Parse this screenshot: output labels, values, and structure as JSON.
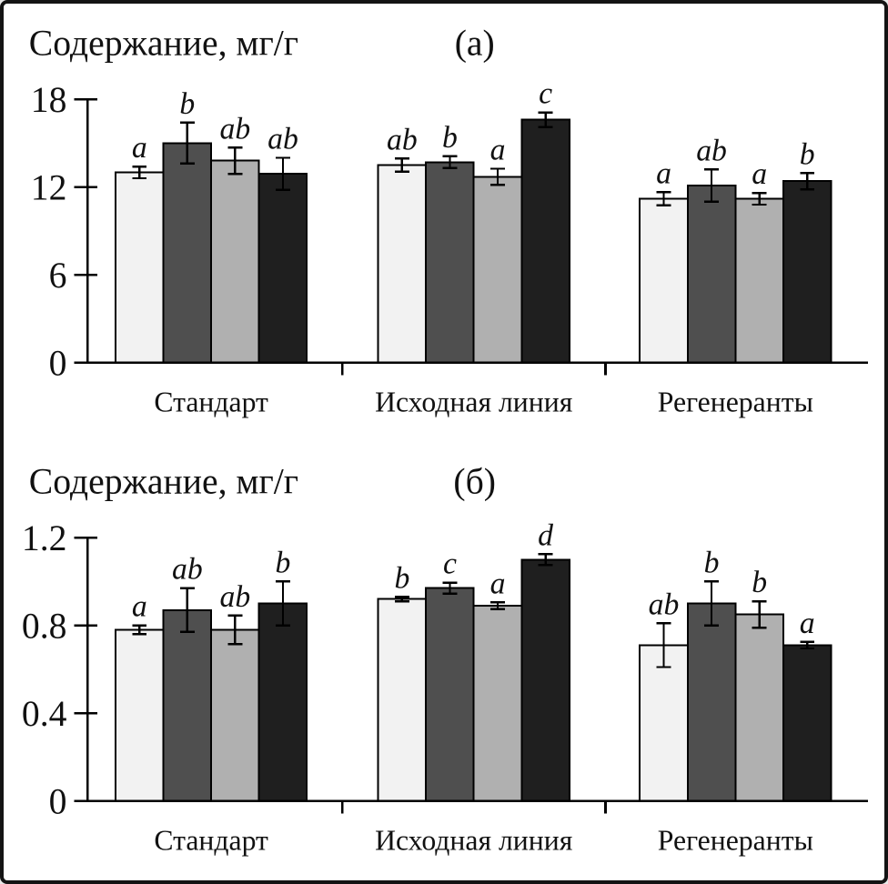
{
  "figure": {
    "ylabel": "Содержание, мг/г"
  },
  "chart_data": [
    {
      "type": "bar",
      "panel": "(а)",
      "title": "Содержание, мг/г",
      "ylabel": "Содержание, мг/г",
      "xlabel": "",
      "ylim": [
        0,
        18
      ],
      "yticks": [
        0,
        6,
        12,
        18
      ],
      "ytick_labels": [
        "0",
        "6",
        "12",
        "18"
      ],
      "grid": "off",
      "legend": "none",
      "series_colors": [
        "#f2f2f2",
        "#4f4f4f",
        "#b0b0b0",
        "#1f1f1f"
      ],
      "categories": [
        "Стандарт",
        "Исходная линия",
        "Регенеранты"
      ],
      "groups": [
        {
          "category": "Стандарт",
          "values": [
            13.0,
            15.0,
            13.8,
            12.9
          ],
          "errors": [
            0.4,
            1.4,
            0.9,
            1.1
          ],
          "letters": [
            "a",
            "b",
            "ab",
            "ab"
          ]
        },
        {
          "category": "Исходная линия",
          "values": [
            13.5,
            13.7,
            12.7,
            16.6
          ],
          "errors": [
            0.45,
            0.4,
            0.55,
            0.5
          ],
          "letters": [
            "ab",
            "b",
            "a",
            "c"
          ]
        },
        {
          "category": "Регенеранты",
          "values": [
            11.2,
            12.1,
            11.2,
            12.4
          ],
          "errors": [
            0.45,
            1.1,
            0.4,
            0.55
          ],
          "letters": [
            "a",
            "ab",
            "a",
            "b"
          ]
        }
      ]
    },
    {
      "type": "bar",
      "panel": "(б)",
      "title": "Содержание, мг/г",
      "ylabel": "Содержание, мг/г",
      "xlabel": "",
      "ylim": [
        0,
        1.2
      ],
      "yticks": [
        0,
        0.4,
        0.8,
        1.2
      ],
      "ytick_labels": [
        "0",
        "0.4",
        "0.8",
        "1.2"
      ],
      "grid": "off",
      "legend": "none",
      "series_colors": [
        "#f2f2f2",
        "#4f4f4f",
        "#b0b0b0",
        "#1f1f1f"
      ],
      "categories": [
        "Стандарт",
        "Исходная линия",
        "Регенеранты"
      ],
      "groups": [
        {
          "category": "Стандарт",
          "values": [
            0.78,
            0.87,
            0.78,
            0.9
          ],
          "errors": [
            0.02,
            0.1,
            0.065,
            0.1
          ],
          "letters": [
            "a",
            "ab",
            "ab",
            "b"
          ]
        },
        {
          "category": "Исходная линия",
          "values": [
            0.92,
            0.97,
            0.89,
            1.1
          ],
          "errors": [
            0.01,
            0.025,
            0.015,
            0.025
          ],
          "letters": [
            "b",
            "c",
            "a",
            "d"
          ]
        },
        {
          "category": "Регенеранты",
          "values": [
            0.71,
            0.9,
            0.85,
            0.71
          ],
          "errors": [
            0.1,
            0.1,
            0.06,
            0.015
          ],
          "letters": [
            "ab",
            "b",
            "b",
            "a"
          ]
        }
      ]
    }
  ]
}
